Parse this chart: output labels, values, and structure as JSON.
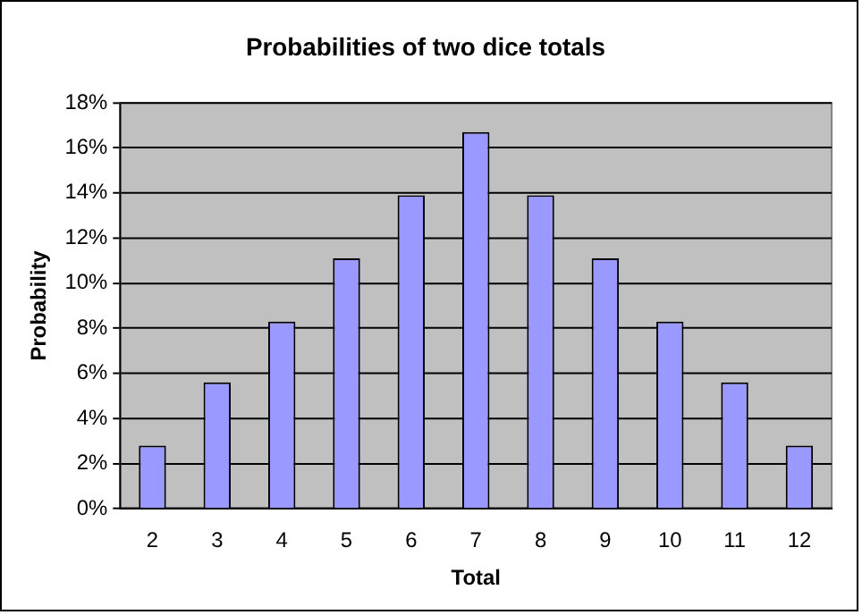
{
  "chart_data": {
    "type": "bar",
    "title": "Probabilities of two dice totals",
    "xlabel": "Total",
    "ylabel": "Probability",
    "categories": [
      "2",
      "3",
      "4",
      "5",
      "6",
      "7",
      "8",
      "9",
      "10",
      "11",
      "12"
    ],
    "values": [
      2.8,
      5.6,
      8.3,
      11.1,
      13.9,
      16.7,
      13.9,
      11.1,
      8.3,
      5.6,
      2.8
    ],
    "color": "#9999ff",
    "ylim": [
      0,
      18
    ],
    "yticks": [
      {
        "value": 0,
        "label": "0%"
      },
      {
        "value": 2,
        "label": "2%"
      },
      {
        "value": 4,
        "label": "4%"
      },
      {
        "value": 6,
        "label": "6%"
      },
      {
        "value": 8,
        "label": "8%"
      },
      {
        "value": 10,
        "label": "10%"
      },
      {
        "value": 12,
        "label": "12%"
      },
      {
        "value": 14,
        "label": "14%"
      },
      {
        "value": 16,
        "label": "16%"
      },
      {
        "value": 18,
        "label": "18%"
      }
    ],
    "grid": "y",
    "legend": false
  }
}
